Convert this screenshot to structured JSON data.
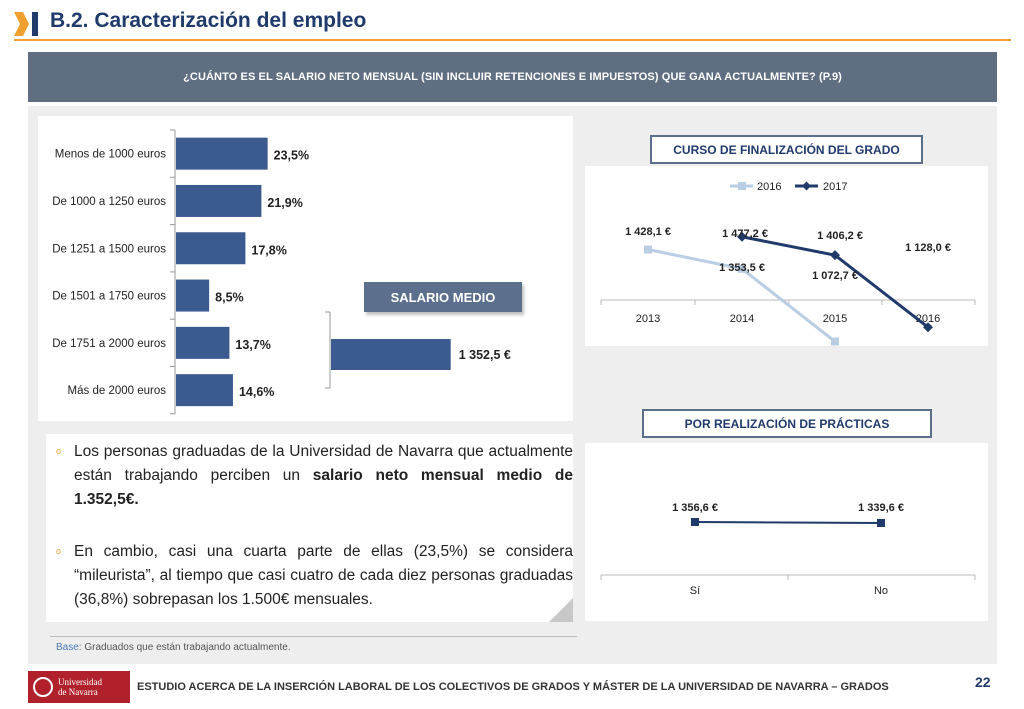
{
  "header": {
    "title": "B.2. Caracterización del empleo"
  },
  "question": "¿CUÁNTO ES EL SALARIO NETO MENSUAL (SIN INCLUIR RETENCIONES E IMPUESTOS) QUE GANA ACTUALMENTE? (P.9)",
  "labels": {
    "salario_medio": "SALARIO MEDIO",
    "curso": "CURSO DE FINALIZACIÓN DEL GRADO",
    "practicas": "POR REALIZACIÓN DE PRÁCTICAS"
  },
  "chart_data": [
    {
      "type": "bar",
      "orientation": "horizontal",
      "categories": [
        "Menos de 1000 euros",
        "De 1000 a 1250 euros",
        "De 1251 a 1500 euros",
        "De 1501 a 1750 euros",
        "De 1751 a 2000 euros",
        "Más de 2000 euros"
      ],
      "values": [
        23.5,
        21.9,
        17.8,
        8.5,
        13.7,
        14.6
      ],
      "value_labels": [
        "23,5%",
        "21,9%",
        "17,8%",
        "8,5%",
        "13,7%",
        "14,6%"
      ],
      "color": "#3b5a8f"
    },
    {
      "type": "bar",
      "orientation": "horizontal",
      "title": "SALARIO MEDIO",
      "values": [
        1352.5
      ],
      "value_labels": [
        "1 352,5 €"
      ],
      "color": "#3b5a8f"
    },
    {
      "type": "line",
      "title": "CURSO DE FINALIZACIÓN DEL GRADO",
      "categories": [
        "2013",
        "2014",
        "2015",
        "2016"
      ],
      "legend_position": "top",
      "series": [
        {
          "name": "2016",
          "values": [
            1428.1,
            1353.5,
            1072.7,
            null
          ],
          "labels": [
            "1 428,1 €",
            "1 353,5 €",
            "1 072,7 €",
            ""
          ],
          "color": "#b9cde3"
        },
        {
          "name": "2017",
          "values": [
            null,
            1477.2,
            1406.2,
            1128.0
          ],
          "labels": [
            "",
            "1 477,2 €",
            "1 406,2 €",
            "1 128,0 €"
          ],
          "color": "#1f3a6b"
        }
      ]
    },
    {
      "type": "line",
      "title": "POR REALIZACIÓN DE PRÁCTICAS",
      "categories": [
        "Sí",
        "No"
      ],
      "series": [
        {
          "values": [
            1356.6,
            1339.6
          ],
          "labels": [
            "1 356,6 €",
            "1 339,6 €"
          ],
          "color": "#1f3a6b"
        }
      ]
    }
  ],
  "bullets": [
    {
      "pre": "Los personas graduadas de la Universidad de Navarra que actualmente están trabajando perciben un ",
      "bold": "salario neto mensual medio de 1.352,5€.",
      "post": ""
    },
    {
      "pre": "En cambio, casi una cuarta parte de ellas (23,5%) se considera “mileurista”, al tiempo que casi cuatro de cada diez personas graduadas (36,8%) sobrepasan los 1.500€ mensuales.",
      "bold": "",
      "post": ""
    }
  ],
  "base_note": {
    "label": "Base",
    "text": ": Graduados que están trabajando actualmente."
  },
  "footer": {
    "logo_text_1": "Universidad",
    "logo_text_2": "de Navarra",
    "text": "ESTUDIO ACERCA DE LA INSERCIÓN LABORAL DE LOS COLECTIVOS DE GRADOS Y MÁSTER DE LA UNIVERSIDAD DE NAVARRA – GRADOS",
    "page": "22"
  },
  "colors": {
    "accent": "#f0a030",
    "navy": "#1f3a6b",
    "bar": "#3b5a8f",
    "banner": "#606e82"
  }
}
